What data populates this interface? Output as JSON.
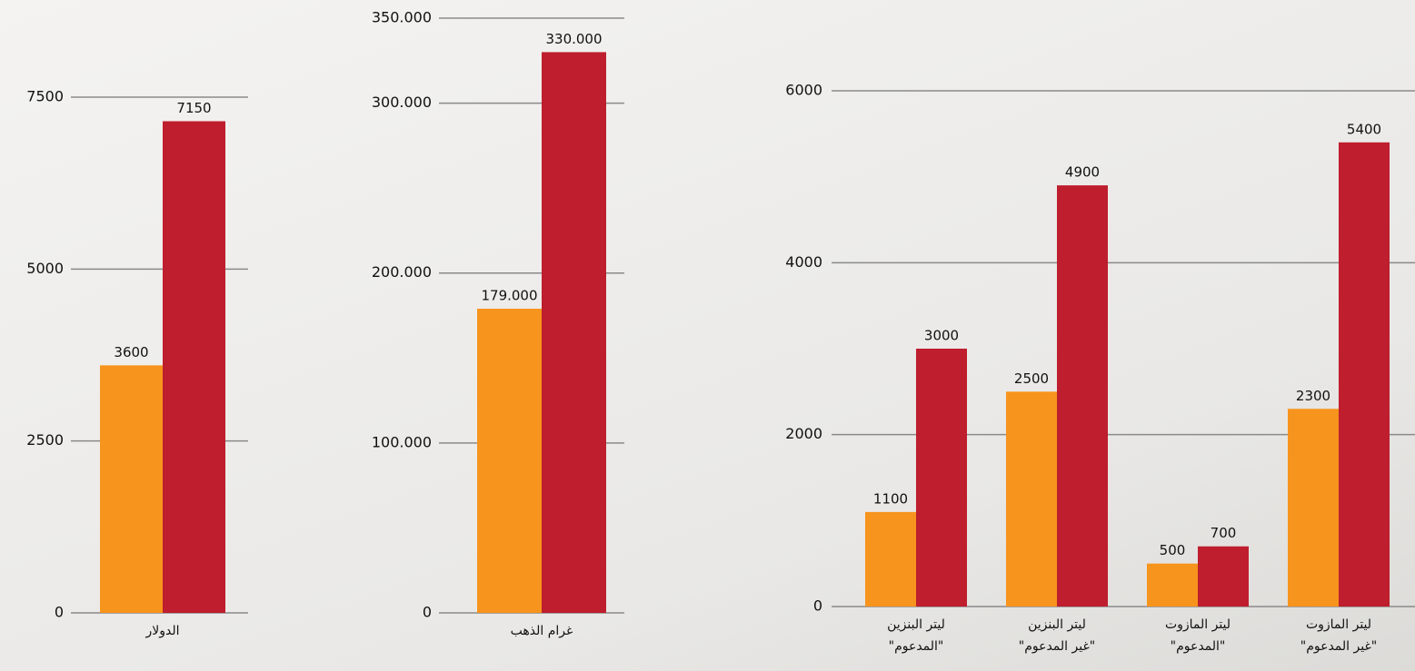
{
  "chart_data": [
    {
      "type": "bar",
      "categories": [
        "الدولار"
      ],
      "series": [
        {
          "color": "#f7941d",
          "values": [
            3600
          ]
        },
        {
          "color": "#be1e2d",
          "values": [
            7150
          ]
        }
      ],
      "ylim": [
        0,
        7500
      ],
      "yticks": [
        0,
        2500,
        5000,
        7500
      ],
      "grid": true
    },
    {
      "type": "bar",
      "categories": [
        "غرام الذهب"
      ],
      "series": [
        {
          "color": "#f7941d",
          "values": [
            179000
          ],
          "value_labels": [
            "179.000"
          ]
        },
        {
          "color": "#be1e2d",
          "values": [
            330000
          ],
          "value_labels": [
            "330.000"
          ]
        }
      ],
      "ylim": [
        0,
        350000
      ],
      "yticks": [
        0,
        {
          "value": 100000,
          "label": "100.000"
        },
        {
          "value": 200000,
          "label": "200.000"
        },
        {
          "value": 300000,
          "label": "300.000"
        },
        {
          "value": 350000,
          "label": "350.000"
        }
      ],
      "grid": true
    },
    {
      "type": "bar",
      "categories": [
        "ليتر البنزين\n\"المدعوم\"",
        "ليتر البنزين\n\"غير المدعوم\"",
        "ليتر المازوت\n\"المدعوم\"",
        "ليتر المازوت\n\"غير المدعوم\""
      ],
      "series": [
        {
          "color": "#f7941d",
          "values": [
            1100,
            2500,
            500,
            2300
          ]
        },
        {
          "color": "#be1e2d",
          "values": [
            3000,
            4900,
            700,
            5400
          ]
        }
      ],
      "ylim": [
        0,
        6000
      ],
      "yticks": [
        0,
        2000,
        4000,
        6000
      ],
      "grid": true
    }
  ]
}
